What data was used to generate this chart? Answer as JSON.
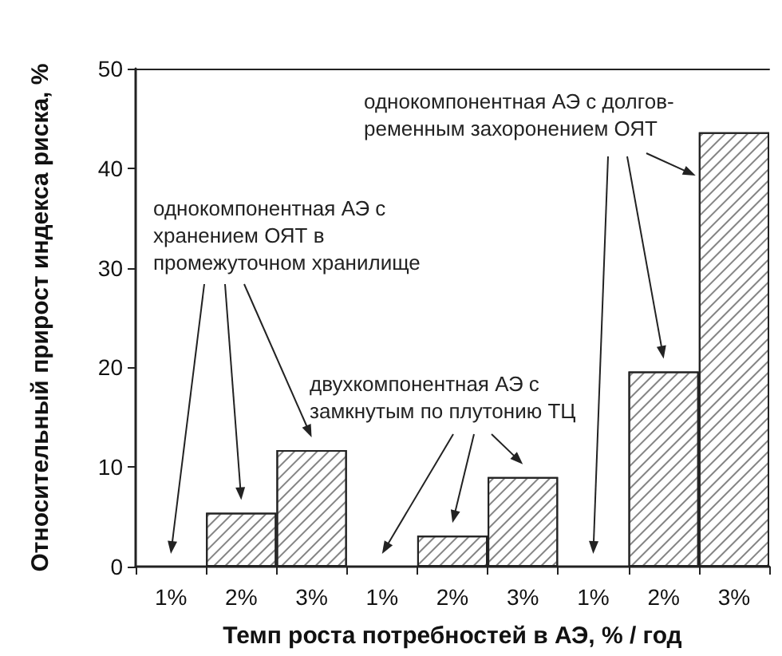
{
  "chart_data": {
    "type": "bar",
    "xlabel": "Темп роста потребностей в АЭ, % / год",
    "ylabel": "Относительный прирост индекса риска, %",
    "categories": [
      "1%",
      "2%",
      "3%",
      "1%",
      "2%",
      "3%",
      "1%",
      "2%",
      "3%"
    ],
    "values": [
      0,
      5.4,
      11.7,
      0,
      3.1,
      9.0,
      0,
      19.6,
      43.6
    ],
    "color": "#ffffff",
    "ylim": [
      0,
      50
    ],
    "yticks": [
      0,
      10,
      20,
      30,
      40,
      50
    ],
    "annotations": [
      "однокомпонентная АЭ с\nхранением ОЯТ в\nпромежуточном хранилище",
      "двухкомпонентная АЭ с\nзамкнутым по плутонию ТЦ",
      "однокомпонентная АЭ с долгов-\nременным захоронением ОЯТ"
    ],
    "grid": false
  }
}
